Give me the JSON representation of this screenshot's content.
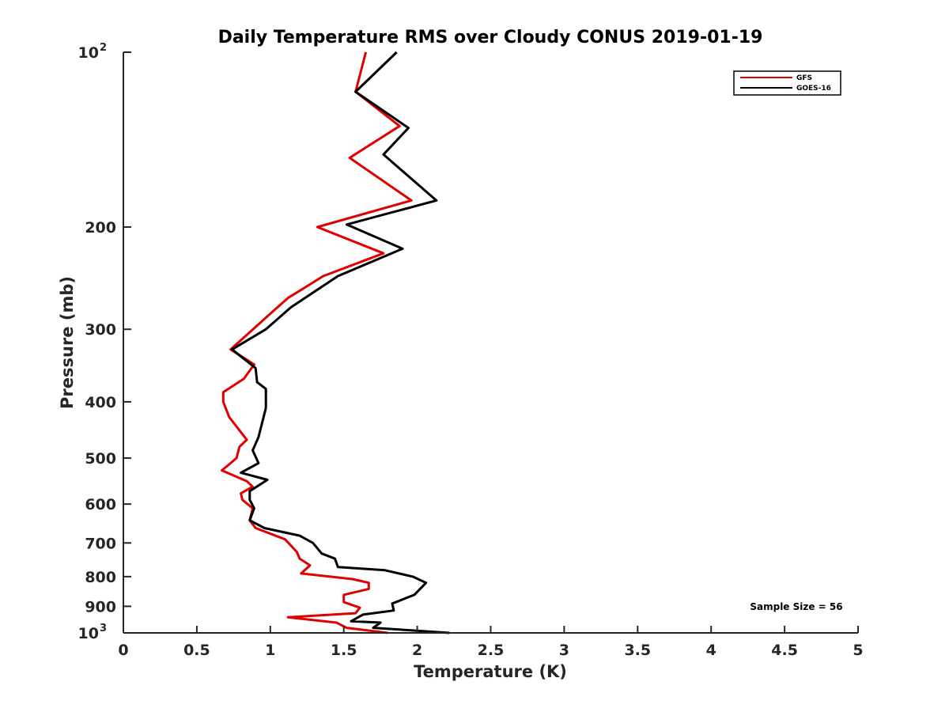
{
  "chart_data": {
    "type": "line",
    "title": "Daily Temperature RMS over Cloudy CONUS 2019-01-19",
    "xlabel": "Temperature (K)",
    "ylabel": "Pressure (mb)",
    "xlim": [
      0,
      5
    ],
    "ylim": [
      100,
      1000
    ],
    "y_scale": "log",
    "y_reversed": true,
    "grid": false,
    "legend_position": "top-right",
    "x_ticks": [
      "0",
      "0.5",
      "1",
      "1.5",
      "2",
      "2.5",
      "3",
      "3.5",
      "4",
      "4.5",
      "5"
    ],
    "y_ticks": [
      {
        "value": 100,
        "base": "10",
        "exp": "2"
      },
      {
        "value": 200,
        "label": "200"
      },
      {
        "value": 300,
        "label": "300"
      },
      {
        "value": 400,
        "label": "400"
      },
      {
        "value": 500,
        "label": "500"
      },
      {
        "value": 600,
        "label": "600"
      },
      {
        "value": 700,
        "label": "700"
      },
      {
        "value": 800,
        "label": "800"
      },
      {
        "value": 900,
        "label": "900"
      },
      {
        "value": 1000,
        "base": "10",
        "exp": "3"
      }
    ],
    "annotation": "Sample Size = 56",
    "series": [
      {
        "name": "GFS",
        "color": "#e00000",
        "points": [
          {
            "x": 1.65,
            "y": 100
          },
          {
            "x": 1.58,
            "y": 117
          },
          {
            "x": 1.88,
            "y": 134
          },
          {
            "x": 1.54,
            "y": 152
          },
          {
            "x": 1.96,
            "y": 180
          },
          {
            "x": 1.32,
            "y": 200
          },
          {
            "x": 1.77,
            "y": 222
          },
          {
            "x": 1.36,
            "y": 243
          },
          {
            "x": 1.12,
            "y": 265
          },
          {
            "x": 1.0,
            "y": 282
          },
          {
            "x": 0.73,
            "y": 325
          },
          {
            "x": 0.89,
            "y": 345
          },
          {
            "x": 0.82,
            "y": 365
          },
          {
            "x": 0.68,
            "y": 385
          },
          {
            "x": 0.68,
            "y": 400
          },
          {
            "x": 0.72,
            "y": 425
          },
          {
            "x": 0.84,
            "y": 465
          },
          {
            "x": 0.79,
            "y": 478
          },
          {
            "x": 0.77,
            "y": 500
          },
          {
            "x": 0.71,
            "y": 515
          },
          {
            "x": 0.67,
            "y": 525
          },
          {
            "x": 0.84,
            "y": 548
          },
          {
            "x": 0.88,
            "y": 560
          },
          {
            "x": 0.8,
            "y": 575
          },
          {
            "x": 0.81,
            "y": 590
          },
          {
            "x": 0.88,
            "y": 610
          },
          {
            "x": 0.86,
            "y": 640
          },
          {
            "x": 0.9,
            "y": 660
          },
          {
            "x": 1.1,
            "y": 690
          },
          {
            "x": 1.18,
            "y": 725
          },
          {
            "x": 1.2,
            "y": 745
          },
          {
            "x": 1.27,
            "y": 765
          },
          {
            "x": 1.21,
            "y": 790
          },
          {
            "x": 1.56,
            "y": 808
          },
          {
            "x": 1.67,
            "y": 820
          },
          {
            "x": 1.67,
            "y": 840
          },
          {
            "x": 1.5,
            "y": 860
          },
          {
            "x": 1.5,
            "y": 885
          },
          {
            "x": 1.61,
            "y": 905
          },
          {
            "x": 1.58,
            "y": 925
          },
          {
            "x": 1.12,
            "y": 940
          },
          {
            "x": 1.45,
            "y": 960
          },
          {
            "x": 1.52,
            "y": 980
          },
          {
            "x": 1.8,
            "y": 1000
          }
        ]
      },
      {
        "name": "GOES-16",
        "color": "#000000",
        "points": [
          {
            "x": 1.86,
            "y": 100
          },
          {
            "x": 1.58,
            "y": 117
          },
          {
            "x": 1.94,
            "y": 135
          },
          {
            "x": 1.77,
            "y": 150
          },
          {
            "x": 2.13,
            "y": 180
          },
          {
            "x": 1.52,
            "y": 198
          },
          {
            "x": 1.9,
            "y": 218
          },
          {
            "x": 1.46,
            "y": 243
          },
          {
            "x": 1.14,
            "y": 275
          },
          {
            "x": 0.97,
            "y": 300
          },
          {
            "x": 0.74,
            "y": 325
          },
          {
            "x": 0.9,
            "y": 350
          },
          {
            "x": 0.91,
            "y": 370
          },
          {
            "x": 0.97,
            "y": 380
          },
          {
            "x": 0.97,
            "y": 410
          },
          {
            "x": 0.92,
            "y": 460
          },
          {
            "x": 0.88,
            "y": 485
          },
          {
            "x": 0.92,
            "y": 510
          },
          {
            "x": 0.8,
            "y": 530
          },
          {
            "x": 0.98,
            "y": 545
          },
          {
            "x": 0.86,
            "y": 570
          },
          {
            "x": 0.86,
            "y": 590
          },
          {
            "x": 0.89,
            "y": 610
          },
          {
            "x": 0.86,
            "y": 640
          },
          {
            "x": 0.96,
            "y": 660
          },
          {
            "x": 1.2,
            "y": 680
          },
          {
            "x": 1.29,
            "y": 700
          },
          {
            "x": 1.35,
            "y": 730
          },
          {
            "x": 1.44,
            "y": 745
          },
          {
            "x": 1.46,
            "y": 770
          },
          {
            "x": 1.78,
            "y": 780
          },
          {
            "x": 1.97,
            "y": 800
          },
          {
            "x": 2.06,
            "y": 820
          },
          {
            "x": 1.98,
            "y": 860
          },
          {
            "x": 1.83,
            "y": 890
          },
          {
            "x": 1.84,
            "y": 915
          },
          {
            "x": 1.63,
            "y": 930
          },
          {
            "x": 1.55,
            "y": 955
          },
          {
            "x": 1.75,
            "y": 960
          },
          {
            "x": 1.7,
            "y": 980
          },
          {
            "x": 2.22,
            "y": 1000
          }
        ]
      }
    ]
  }
}
